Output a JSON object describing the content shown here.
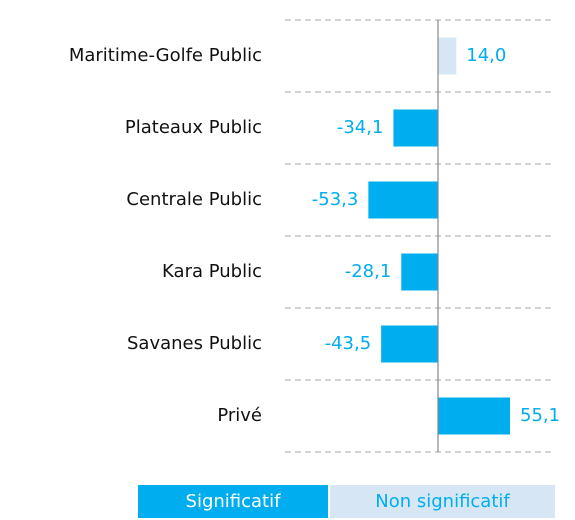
{
  "chart_data": {
    "type": "hbar",
    "categories": [
      "Maritime-Golfe Public",
      "Plateaux Public",
      "Centrale Public",
      "Kara Public",
      "Savanes Public",
      "Privé"
    ],
    "values": [
      14.0,
      -34.1,
      -53.3,
      -28.1,
      -43.5,
      55.1
    ],
    "value_labels": [
      "14,0",
      "-34,1",
      "-53,3",
      "-28,1",
      "-43,5",
      "55,1"
    ],
    "colors": [
      "#d6e6f4",
      "#00aeef",
      "#00aeef",
      "#00aeef",
      "#00aeef",
      "#00aeef"
    ],
    "legend": [
      {
        "name": "Significatif",
        "color": "#00aeef",
        "text_color": "#ffffff"
      },
      {
        "name": "Non significatif",
        "color": "#d6e6f4",
        "text_color": "#00aeef"
      }
    ]
  }
}
